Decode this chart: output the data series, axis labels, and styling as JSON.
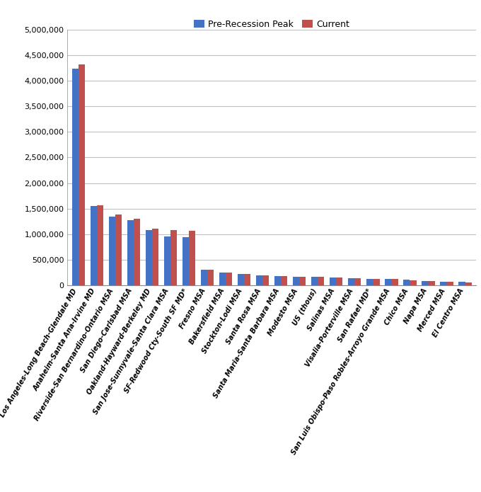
{
  "categories": [
    "Los Angeles-Long Beach-Glendale MD",
    "Anaheim-Santa Ana-Irvine MD",
    "Riverside-San Bernardino-Ontario MSA",
    "San Diego-Carlsbad MSA",
    "Oakland-Hayward-Berkeley MD",
    "San Jose-Sunnyvale-Santa Clara MSA",
    "SF-Redwood Cty-South SF MD*",
    "Fresno MSA",
    "Bakersfield MSA",
    "Stockton-Lodi MSA",
    "Santa Rosa MSA",
    "Santa Maria-Santa Barbara MSA",
    "Modesto MSA",
    "US (thous)",
    "Salinas MSA",
    "Visalia-Porterville MSA",
    "San Rafael MD*",
    "San Luis Obispo-Paso Robles-Arroyo Grande MSA",
    "Chico MSA",
    "Napa MSA",
    "Merced MSA",
    "El Centro MSA"
  ],
  "pre_recession": [
    4230000,
    1545000,
    1350000,
    1280000,
    1080000,
    960000,
    940000,
    310000,
    250000,
    220000,
    195000,
    175000,
    170000,
    162000,
    155000,
    145000,
    130000,
    122000,
    110000,
    80000,
    75000,
    65000
  ],
  "current": [
    4320000,
    1560000,
    1390000,
    1300000,
    1110000,
    1075000,
    1070000,
    310000,
    250000,
    220000,
    190000,
    175000,
    168000,
    162000,
    150000,
    143000,
    128000,
    120000,
    105000,
    78000,
    72000,
    63000
  ],
  "bar_color_pre": "#4472C4",
  "bar_color_current": "#C0504D",
  "legend_labels": [
    "Pre-Recession Peak",
    "Current"
  ],
  "ylim": [
    0,
    5000000
  ],
  "yticks": [
    0,
    500000,
    1000000,
    1500000,
    2000000,
    2500000,
    3000000,
    3500000,
    4000000,
    4500000,
    5000000
  ],
  "background_color": "#FFFFFF",
  "grid_color": "#C0C0C0",
  "label_rotation": 60,
  "label_fontsize": 7.0
}
